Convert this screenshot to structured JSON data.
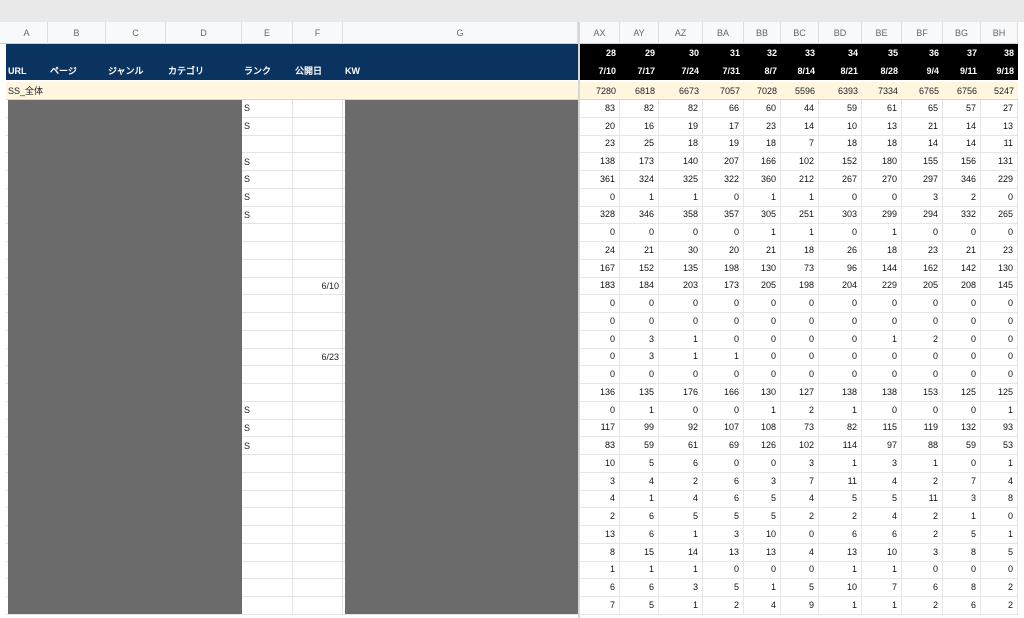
{
  "sheet": {
    "column_letters_left": [
      "A",
      "B",
      "C",
      "D",
      "E",
      "F",
      "G"
    ],
    "column_letters_right": [
      "AX",
      "AY",
      "AZ",
      "BA",
      "BB",
      "BC",
      "BD",
      "BE",
      "BF",
      "BG",
      "BH"
    ],
    "header_labels": [
      "URL",
      "ページ",
      "ジャンル",
      "カテゴリ",
      "ランク",
      "公開日",
      "KW"
    ],
    "weeks": [
      28,
      29,
      30,
      31,
      32,
      33,
      34,
      35,
      36,
      37,
      38
    ],
    "dates": [
      "7/10",
      "7/17",
      "7/24",
      "7/31",
      "8/7",
      "8/14",
      "8/21",
      "8/28",
      "9/4",
      "9/11",
      "9/18"
    ],
    "total": {
      "label": "SS_全体",
      "values": [
        7280,
        6818,
        6673,
        7057,
        7028,
        5596,
        6393,
        7334,
        6765,
        6756,
        5247
      ]
    },
    "rows": [
      {
        "rank": "S",
        "values": [
          83,
          82,
          82,
          66,
          60,
          44,
          59,
          61,
          65,
          57,
          27
        ]
      },
      {
        "rank": "S",
        "values": [
          20,
          16,
          19,
          17,
          23,
          14,
          10,
          13,
          21,
          14,
          13
        ]
      },
      {
        "values": [
          23,
          25,
          18,
          19,
          18,
          7,
          18,
          18,
          14,
          14,
          11
        ]
      },
      {
        "rank": "S",
        "values": [
          138,
          173,
          140,
          207,
          166,
          102,
          152,
          180,
          155,
          156,
          131
        ]
      },
      {
        "rank": "S",
        "values": [
          361,
          324,
          325,
          322,
          360,
          212,
          267,
          270,
          297,
          346,
          229
        ]
      },
      {
        "rank": "S",
        "values": [
          0,
          1,
          1,
          0,
          1,
          1,
          0,
          0,
          3,
          2,
          0
        ]
      },
      {
        "rank": "S",
        "values": [
          328,
          346,
          358,
          357,
          305,
          251,
          303,
          299,
          294,
          332,
          265
        ]
      },
      {
        "values": [
          0,
          0,
          0,
          0,
          1,
          1,
          0,
          1,
          0,
          0,
          0
        ]
      },
      {
        "values": [
          24,
          21,
          30,
          20,
          21,
          18,
          26,
          18,
          23,
          21,
          23
        ]
      },
      {
        "values": [
          167,
          152,
          135,
          198,
          130,
          73,
          96,
          144,
          162,
          142,
          130
        ]
      },
      {
        "published": "6/10",
        "values": [
          183,
          184,
          203,
          173,
          205,
          198,
          204,
          229,
          205,
          208,
          145
        ]
      },
      {
        "values": [
          0,
          0,
          0,
          0,
          0,
          0,
          0,
          0,
          0,
          0,
          0
        ]
      },
      {
        "values": [
          0,
          0,
          0,
          0,
          0,
          0,
          0,
          0,
          0,
          0,
          0
        ]
      },
      {
        "values": [
          0,
          3,
          1,
          0,
          0,
          0,
          0,
          1,
          2,
          0,
          0
        ]
      },
      {
        "published": "6/23",
        "values": [
          0,
          3,
          1,
          1,
          0,
          0,
          0,
          0,
          0,
          0,
          0
        ]
      },
      {
        "values": [
          0,
          0,
          0,
          0,
          0,
          0,
          0,
          0,
          0,
          0,
          0
        ]
      },
      {
        "values": [
          136,
          135,
          176,
          166,
          130,
          127,
          138,
          138,
          153,
          125,
          125
        ]
      },
      {
        "rank": "S",
        "values": [
          0,
          1,
          0,
          0,
          1,
          2,
          1,
          0,
          0,
          0,
          1
        ]
      },
      {
        "rank": "S",
        "values": [
          117,
          99,
          92,
          107,
          108,
          73,
          82,
          115,
          119,
          132,
          93
        ]
      },
      {
        "rank": "S",
        "values": [
          83,
          59,
          61,
          69,
          126,
          102,
          114,
          97,
          88,
          59,
          53
        ]
      },
      {
        "values": [
          10,
          5,
          6,
          0,
          0,
          3,
          1,
          3,
          1,
          0,
          1
        ]
      },
      {
        "values": [
          3,
          4,
          2,
          6,
          3,
          7,
          11,
          4,
          2,
          7,
          4
        ]
      },
      {
        "values": [
          4,
          1,
          4,
          6,
          5,
          4,
          5,
          5,
          11,
          3,
          8
        ]
      },
      {
        "values": [
          2,
          6,
          5,
          5,
          5,
          2,
          2,
          4,
          2,
          1,
          0
        ]
      },
      {
        "values": [
          13,
          6,
          1,
          3,
          10,
          0,
          6,
          6,
          2,
          5,
          1
        ]
      },
      {
        "values": [
          8,
          15,
          14,
          13,
          13,
          4,
          13,
          10,
          3,
          8,
          5
        ]
      },
      {
        "values": [
          1,
          1,
          1,
          0,
          0,
          0,
          1,
          1,
          0,
          0,
          0
        ]
      },
      {
        "values": [
          6,
          6,
          3,
          5,
          1,
          5,
          10,
          7,
          6,
          8,
          2
        ]
      },
      {
        "values": [
          7,
          5,
          1,
          2,
          4,
          9,
          1,
          1,
          2,
          6,
          2
        ]
      }
    ]
  }
}
